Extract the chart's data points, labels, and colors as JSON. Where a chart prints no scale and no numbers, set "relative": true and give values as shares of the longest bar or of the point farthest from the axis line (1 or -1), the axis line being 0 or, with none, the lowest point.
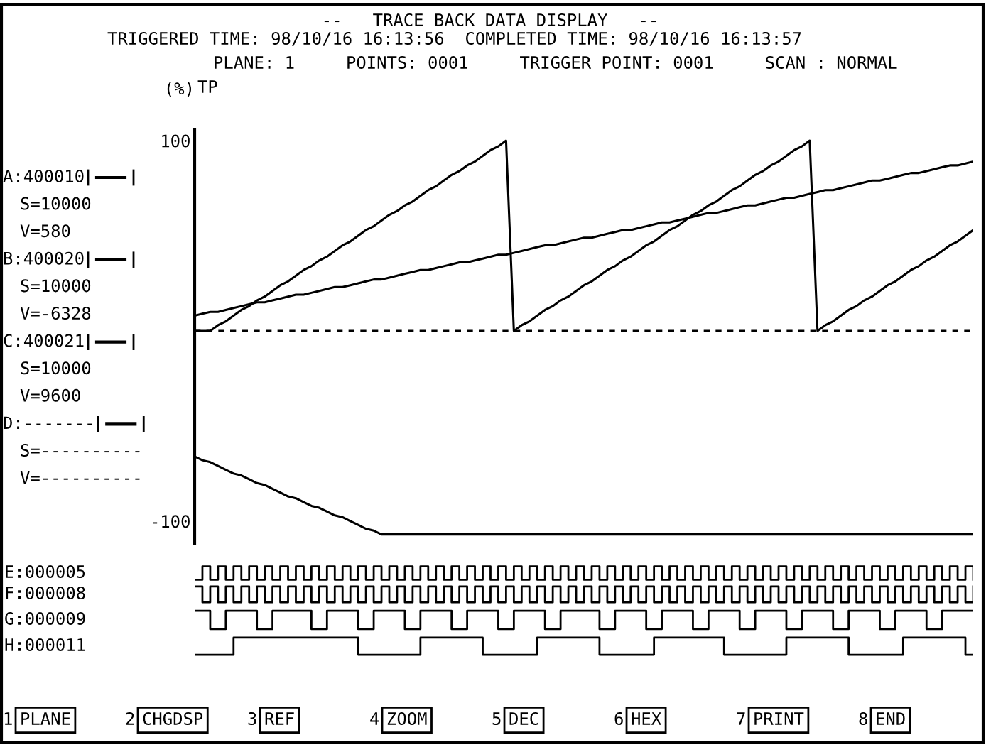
{
  "chart_data": [
    {
      "type": "line",
      "title": "--   TRACE BACK DATA DISPLAY   --",
      "subtitle": "TRIGGERED TIME: 98/10/16 16:13:56  COMPLETED TIME: 98/10/16 16:13:57",
      "ylabel": "(%)",
      "categories": [
        null,
        null,
        null,
        null,
        null,
        null,
        null,
        null,
        null,
        null,
        null,
        null,
        null,
        null,
        null,
        null,
        null,
        null,
        null,
        null,
        null,
        null,
        null,
        null,
        null,
        null,
        null,
        null,
        null,
        null,
        null,
        null,
        null,
        null,
        null,
        null,
        null,
        null,
        null,
        null,
        null,
        null,
        null,
        null,
        null,
        null,
        null,
        null,
        null,
        null,
        null,
        null,
        null,
        null,
        null,
        null,
        null,
        null,
        null,
        null,
        null,
        null,
        null,
        null,
        null,
        null,
        null,
        null,
        null,
        null,
        null,
        null,
        null,
        null,
        null,
        null,
        null,
        null,
        null,
        null,
        null,
        null,
        null,
        null,
        null,
        null,
        null,
        null,
        null,
        null,
        null,
        null,
        null,
        null,
        null,
        null,
        null,
        null,
        null,
        null,
        null
      ],
      "series": [
        {
          "name": "A:400010",
          "color": "#000000",
          "values": [
            0,
            0,
            0,
            3,
            5,
            8,
            11,
            13,
            16,
            18,
            21,
            24,
            26,
            29,
            32,
            34,
            37,
            39,
            42,
            45,
            47,
            50,
            53,
            55,
            58,
            61,
            63,
            66,
            68,
            71,
            74,
            76,
            79,
            82,
            84,
            87,
            89,
            92,
            95,
            97,
            100,
            0,
            3,
            5,
            8,
            11,
            13,
            16,
            18,
            21,
            24,
            26,
            29,
            32,
            34,
            37,
            39,
            42,
            45,
            47,
            50,
            53,
            55,
            58,
            61,
            63,
            66,
            68,
            71,
            74,
            76,
            79,
            82,
            84,
            87,
            89,
            92,
            95,
            97,
            100,
            0,
            3,
            5,
            8,
            11,
            13,
            16,
            18,
            21,
            24,
            26,
            29,
            32,
            34,
            37,
            39,
            42,
            45,
            47,
            50,
            53
          ]
        },
        {
          "name": "B:400020",
          "color": "#000000",
          "values": [
            8,
            9,
            10,
            10,
            11,
            12,
            13,
            14,
            15,
            15,
            16,
            17,
            18,
            19,
            19,
            20,
            21,
            22,
            23,
            23,
            24,
            25,
            26,
            27,
            27,
            28,
            29,
            30,
            31,
            32,
            32,
            33,
            34,
            35,
            36,
            36,
            37,
            38,
            39,
            40,
            40,
            41,
            42,
            43,
            44,
            45,
            45,
            46,
            47,
            48,
            49,
            49,
            50,
            51,
            52,
            53,
            53,
            54,
            55,
            56,
            57,
            57,
            58,
            59,
            60,
            61,
            62,
            62,
            63,
            64,
            65,
            66,
            66,
            67,
            68,
            69,
            70,
            70,
            71,
            72,
            73,
            74,
            74,
            75,
            76,
            77,
            78,
            79,
            79,
            80,
            81,
            82,
            83,
            83,
            84,
            85,
            86,
            87,
            87,
            88,
            89
          ]
        },
        {
          "name": "C:400021",
          "color": "#000000",
          "values": [
            -66,
            -68,
            -69,
            -71,
            -73,
            -75,
            -76,
            -78,
            -80,
            -81,
            -83,
            -85,
            -87,
            -88,
            -90,
            -92,
            -93,
            -95,
            -97,
            -98,
            -100,
            -102,
            -104,
            -105,
            -107,
            -107,
            -107,
            -107,
            -107,
            -107,
            -107,
            -107,
            -107,
            -107,
            -107,
            -107,
            -107,
            -107,
            -107,
            -107,
            -107,
            -107,
            -107,
            -107,
            -107,
            -107,
            -107,
            -107,
            -107,
            -107,
            -107,
            -107,
            -107,
            -107,
            -107,
            -107,
            -107,
            -107,
            -107,
            -107,
            -107,
            -107,
            -107,
            -107,
            -107,
            -107,
            -107,
            -107,
            -107,
            -107,
            -107,
            -107,
            -107,
            -107,
            -107,
            -107,
            -107,
            -107,
            -107,
            -107,
            -107,
            -107,
            -107,
            -107,
            -107,
            -107,
            -107,
            -107,
            -107,
            -107,
            -107,
            -107,
            -107,
            -107,
            -107,
            -107,
            -107,
            -107,
            -107,
            -107,
            -107
          ]
        },
        {
          "name": "D:-------",
          "color": "#000000",
          "values": [
            null,
            null,
            null,
            null,
            null,
            null,
            null,
            null,
            null,
            null,
            null,
            null,
            null,
            null,
            null,
            null,
            null,
            null,
            null,
            null,
            null,
            null,
            null,
            null,
            null,
            null,
            null,
            null,
            null,
            null,
            null,
            null,
            null,
            null,
            null,
            null,
            null,
            null,
            null,
            null,
            null,
            null,
            null,
            null,
            null,
            null,
            null,
            null,
            null,
            null,
            null,
            null,
            null,
            null,
            null,
            null,
            null,
            null,
            null,
            null,
            null,
            null,
            null,
            null,
            null,
            null,
            null,
            null,
            null,
            null,
            null,
            null,
            null,
            null,
            null,
            null,
            null,
            null,
            null,
            null,
            null,
            null,
            null,
            null,
            null,
            null,
            null,
            null,
            null,
            null,
            null,
            null,
            null,
            null,
            null,
            null,
            null,
            null,
            null,
            null,
            null
          ]
        }
      ],
      "ylim": [
        -112,
        106
      ],
      "yticks": [
        100,
        -100
      ],
      "tick_labels": "y",
      "grid": false,
      "legend": "left",
      "ref_lines": [
        {
          "axis": "y",
          "value": 0,
          "line_style": "dashed",
          "color": "#000000"
        }
      ],
      "annotations": [
        "S=10000",
        "V=580",
        "S=10000",
        "V=-6328",
        "S=10000",
        "V=9600",
        "S=----------",
        "V=----------",
        "PLANE: 1     POINTS: 0001     TRIGGER POINT: 0001     SCAN : NORMAL",
        "TP",
        "1",
        "PLANE",
        "2",
        "CHGDSP",
        "3",
        "REF",
        "4",
        "ZOOM",
        "5",
        "DEC",
        "6",
        "HEX",
        "7",
        "PRINT",
        "8",
        "END"
      ]
    },
    {
      "type": "step",
      "relative": true,
      "tick_labels": false,
      "categories": [
        null,
        null,
        null,
        null,
        null,
        null,
        null,
        null,
        null,
        null,
        null,
        null,
        null,
        null,
        null,
        null,
        null,
        null,
        null,
        null,
        null,
        null,
        null,
        null,
        null,
        null,
        null,
        null,
        null,
        null,
        null,
        null,
        null,
        null,
        null,
        null,
        null,
        null,
        null,
        null,
        null,
        null,
        null,
        null,
        null,
        null,
        null,
        null,
        null,
        null,
        null,
        null,
        null,
        null,
        null,
        null,
        null,
        null,
        null,
        null,
        null,
        null,
        null,
        null,
        null,
        null,
        null,
        null,
        null,
        null,
        null,
        null,
        null,
        null,
        null,
        null,
        null,
        null,
        null,
        null,
        null,
        null,
        null,
        null,
        null,
        null,
        null,
        null,
        null,
        null,
        null,
        null,
        null,
        null,
        null,
        null,
        null,
        null,
        null,
        null,
        null
      ],
      "series": [
        {
          "name": "E:000005",
          "color": "#000000",
          "values": [
            0,
            1,
            0,
            1,
            0,
            1,
            0,
            1,
            0,
            1,
            0,
            1,
            0,
            1,
            0,
            1,
            0,
            1,
            0,
            1,
            0,
            1,
            0,
            1,
            0,
            1,
            0,
            1,
            0,
            1,
            0,
            1,
            0,
            1,
            0,
            1,
            0,
            1,
            0,
            1,
            0,
            1,
            0,
            1,
            0,
            1,
            0,
            1,
            0,
            1,
            0,
            1,
            0,
            1,
            0,
            1,
            0,
            1,
            0,
            1,
            0,
            1,
            0,
            1,
            0,
            1,
            0,
            1,
            0,
            1,
            0,
            1,
            0,
            1,
            0,
            1,
            0,
            1,
            0,
            1,
            0,
            1,
            0,
            1,
            0,
            1,
            0,
            1,
            0,
            1,
            0,
            1,
            0,
            1,
            0,
            1,
            0,
            1,
            0,
            1,
            0
          ]
        }
      ]
    },
    {
      "type": "step",
      "relative": true,
      "tick_labels": false,
      "categories": [
        null,
        null,
        null,
        null,
        null,
        null,
        null,
        null,
        null,
        null,
        null,
        null,
        null,
        null,
        null,
        null,
        null,
        null,
        null,
        null,
        null,
        null,
        null,
        null,
        null,
        null,
        null,
        null,
        null,
        null,
        null,
        null,
        null,
        null,
        null,
        null,
        null,
        null,
        null,
        null,
        null,
        null,
        null,
        null,
        null,
        null,
        null,
        null,
        null,
        null,
        null,
        null,
        null,
        null,
        null,
        null,
        null,
        null,
        null,
        null,
        null,
        null,
        null,
        null,
        null,
        null,
        null,
        null,
        null,
        null,
        null,
        null,
        null,
        null,
        null,
        null,
        null,
        null,
        null,
        null,
        null,
        null,
        null,
        null,
        null,
        null,
        null,
        null,
        null,
        null,
        null,
        null,
        null,
        null,
        null,
        null,
        null,
        null,
        null,
        null,
        null
      ],
      "series": [
        {
          "name": "F:000008",
          "color": "#000000",
          "values": [
            1,
            0,
            1,
            0,
            1,
            0,
            1,
            0,
            1,
            0,
            1,
            0,
            1,
            0,
            1,
            0,
            1,
            0,
            1,
            0,
            1,
            0,
            1,
            0,
            1,
            0,
            1,
            0,
            1,
            0,
            1,
            0,
            1,
            0,
            1,
            0,
            1,
            0,
            1,
            0,
            1,
            0,
            1,
            0,
            1,
            0,
            1,
            0,
            1,
            0,
            1,
            0,
            1,
            0,
            1,
            0,
            1,
            0,
            1,
            0,
            1,
            0,
            1,
            0,
            1,
            0,
            1,
            0,
            1,
            0,
            1,
            0,
            1,
            0,
            1,
            0,
            1,
            0,
            1,
            0,
            1,
            0,
            1,
            0,
            1,
            0,
            1,
            0,
            1,
            0,
            1,
            0,
            1,
            0,
            1,
            0,
            1,
            0,
            1,
            0,
            1
          ]
        }
      ]
    },
    {
      "type": "step",
      "relative": true,
      "tick_labels": false,
      "categories": [
        null,
        null,
        null,
        null,
        null,
        null,
        null,
        null,
        null,
        null,
        null,
        null,
        null,
        null,
        null,
        null,
        null,
        null,
        null,
        null,
        null,
        null,
        null,
        null,
        null,
        null,
        null,
        null,
        null,
        null,
        null,
        null,
        null,
        null,
        null,
        null,
        null,
        null,
        null,
        null,
        null,
        null,
        null,
        null,
        null,
        null,
        null,
        null,
        null,
        null,
        null,
        null,
        null,
        null,
        null,
        null,
        null,
        null,
        null,
        null,
        null,
        null,
        null,
        null,
        null,
        null,
        null,
        null,
        null,
        null,
        null,
        null,
        null,
        null,
        null,
        null,
        null,
        null,
        null,
        null,
        null,
        null,
        null,
        null,
        null,
        null,
        null,
        null,
        null,
        null,
        null,
        null,
        null,
        null,
        null,
        null,
        null,
        null,
        null,
        null,
        null
      ],
      "series": [
        {
          "name": "G:000009",
          "color": "#000000",
          "values": [
            1,
            1,
            0,
            0,
            1,
            1,
            1,
            1,
            0,
            0,
            1,
            1,
            1,
            1,
            1,
            0,
            0,
            1,
            1,
            1,
            1,
            0,
            0,
            1,
            1,
            1,
            1,
            0,
            0,
            1,
            1,
            1,
            1,
            0,
            0,
            1,
            1,
            1,
            1,
            0,
            0,
            1,
            1,
            1,
            1,
            0,
            0,
            1,
            1,
            1,
            1,
            1,
            0,
            0,
            1,
            1,
            1,
            1,
            0,
            0,
            1,
            1,
            1,
            1,
            0,
            0,
            1,
            1,
            1,
            1,
            0,
            0,
            1,
            1,
            1,
            1,
            0,
            0,
            1,
            1,
            1,
            1,
            0,
            0,
            1,
            1,
            1,
            1,
            0,
            0,
            1,
            1,
            1,
            1,
            0,
            0,
            1,
            1,
            1,
            1,
            1
          ]
        }
      ]
    },
    {
      "type": "step",
      "relative": true,
      "tick_labels": false,
      "categories": [
        null,
        null,
        null,
        null,
        null,
        null,
        null,
        null,
        null,
        null,
        null,
        null,
        null,
        null,
        null,
        null,
        null,
        null,
        null,
        null,
        null,
        null,
        null,
        null,
        null,
        null,
        null,
        null,
        null,
        null,
        null,
        null,
        null,
        null,
        null,
        null,
        null,
        null,
        null,
        null,
        null,
        null,
        null,
        null,
        null,
        null,
        null,
        null,
        null,
        null,
        null,
        null,
        null,
        null,
        null,
        null,
        null,
        null,
        null,
        null,
        null,
        null,
        null,
        null,
        null,
        null,
        null,
        null,
        null,
        null,
        null,
        null,
        null,
        null,
        null,
        null,
        null,
        null,
        null,
        null,
        null,
        null,
        null,
        null,
        null,
        null,
        null,
        null,
        null,
        null,
        null,
        null,
        null,
        null,
        null,
        null,
        null,
        null,
        null,
        null,
        null
      ],
      "series": [
        {
          "name": "H:000011",
          "color": "#000000",
          "values": [
            0,
            0,
            0,
            0,
            0,
            1,
            1,
            1,
            1,
            1,
            1,
            1,
            1,
            1,
            1,
            1,
            1,
            1,
            1,
            1,
            1,
            0,
            0,
            0,
            0,
            0,
            0,
            0,
            0,
            1,
            1,
            1,
            1,
            1,
            1,
            1,
            1,
            0,
            0,
            0,
            0,
            0,
            0,
            0,
            1,
            1,
            1,
            1,
            1,
            1,
            1,
            1,
            0,
            0,
            0,
            0,
            0,
            0,
            0,
            1,
            1,
            1,
            1,
            1,
            1,
            1,
            1,
            1,
            0,
            0,
            0,
            0,
            0,
            0,
            0,
            0,
            1,
            1,
            1,
            1,
            1,
            1,
            1,
            1,
            0,
            0,
            0,
            0,
            0,
            0,
            0,
            1,
            1,
            1,
            1,
            1,
            1,
            1,
            1,
            0,
            0
          ]
        }
      ]
    }
  ]
}
